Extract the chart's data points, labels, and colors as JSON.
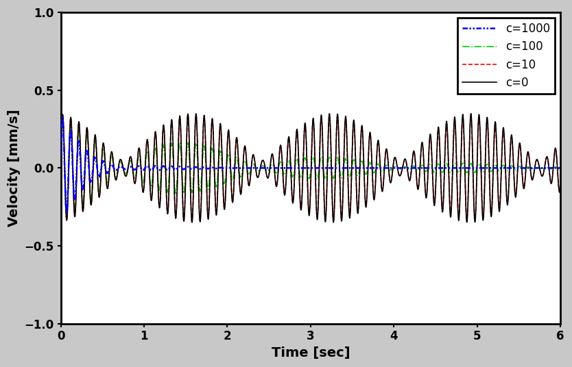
{
  "xlabel": "Time [sec]",
  "ylabel": "Velocity [mm/s]",
  "xlim": [
    0,
    6
  ],
  "ylim": [
    -1.0,
    1.0
  ],
  "yticks": [
    -1.0,
    -0.5,
    0.0,
    0.5,
    1.0
  ],
  "xticks": [
    0,
    1,
    2,
    3,
    4,
    5,
    6
  ],
  "legend_loc": "upper right",
  "legend_fontsize": 12,
  "tick_fontsize": 12,
  "label_fontsize": 14,
  "background_color": "#ffffff",
  "figure_bg": "#c8c8c8",
  "series": [
    {
      "label": "c=0",
      "color": "#000000",
      "linestyle": "solid",
      "linewidth": 1.2,
      "zorder": 4
    },
    {
      "label": "c=10",
      "color": "#ff0000",
      "linestyle": "dashed",
      "linewidth": 1.2,
      "zorder": 3
    },
    {
      "label": "c=100",
      "color": "#00cc00",
      "linestyle": "dashdot",
      "linewidth": 1.2,
      "zorder": 2
    },
    {
      "label": "c=1000",
      "color": "#0000ff",
      "linestyle": "dashdotdotted",
      "linewidth": 1.8,
      "zorder": 5
    }
  ]
}
